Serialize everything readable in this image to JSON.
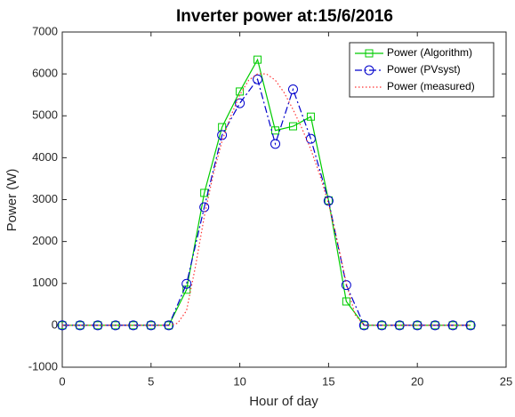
{
  "chart_data": {
    "type": "line",
    "title": "Inverter power at:15/6/2016",
    "xlabel": "Hour of day",
    "ylabel": "Power (W)",
    "xlim": [
      0,
      25
    ],
    "ylim": [
      -1000,
      7000
    ],
    "xticks": [
      0,
      5,
      10,
      15,
      20,
      25
    ],
    "yticks": [
      -1000,
      0,
      1000,
      2000,
      3000,
      4000,
      5000,
      6000,
      7000
    ],
    "legend": "upper right",
    "series": [
      {
        "name": "Power (Algorithm)",
        "color": "#00cc00",
        "marker": "square",
        "linestyle": "solid",
        "x": [
          0,
          1,
          2,
          3,
          4,
          5,
          6,
          7,
          8,
          9,
          10,
          11,
          12,
          13,
          14,
          15,
          16,
          17,
          18,
          19,
          20,
          21,
          22,
          23
        ],
        "values": [
          0,
          0,
          0,
          0,
          0,
          0,
          0,
          850,
          3160,
          4730,
          5580,
          6340,
          4650,
          4750,
          4980,
          2980,
          570,
          0,
          0,
          0,
          0,
          0,
          0,
          0
        ]
      },
      {
        "name": "Power (PVsyst)",
        "color": "#0000cc",
        "marker": "circle",
        "linestyle": "dashdot",
        "x": [
          0,
          1,
          2,
          3,
          4,
          5,
          6,
          7,
          8,
          9,
          10,
          11,
          12,
          13,
          14,
          15,
          16,
          17,
          18,
          19,
          20,
          21,
          22,
          23
        ],
        "values": [
          0,
          0,
          0,
          0,
          0,
          0,
          0,
          990,
          2820,
          4540,
          5300,
          5870,
          4330,
          5630,
          4450,
          2970,
          960,
          0,
          0,
          0,
          0,
          0,
          0,
          0
        ]
      },
      {
        "name": "Power (measured)",
        "color": "#ff3333",
        "marker": "none",
        "linestyle": "dotted",
        "x": [
          0,
          1,
          2,
          3,
          4,
          5,
          6,
          6.5,
          7,
          7.5,
          8,
          8.5,
          9,
          9.5,
          10,
          10.5,
          11,
          11.5,
          12,
          12.5,
          13,
          13.5,
          14,
          14.5,
          15,
          15.5,
          16,
          16.5,
          17,
          18,
          19,
          20,
          21,
          22,
          23
        ],
        "values": [
          0,
          0,
          0,
          0,
          0,
          0,
          0,
          50,
          350,
          1400,
          2600,
          3600,
          4400,
          5000,
          5500,
          5850,
          6000,
          6000,
          5850,
          5550,
          5150,
          4700,
          4200,
          3600,
          2900,
          2000,
          1000,
          250,
          0,
          0,
          0,
          0,
          0,
          0,
          0
        ]
      }
    ]
  }
}
